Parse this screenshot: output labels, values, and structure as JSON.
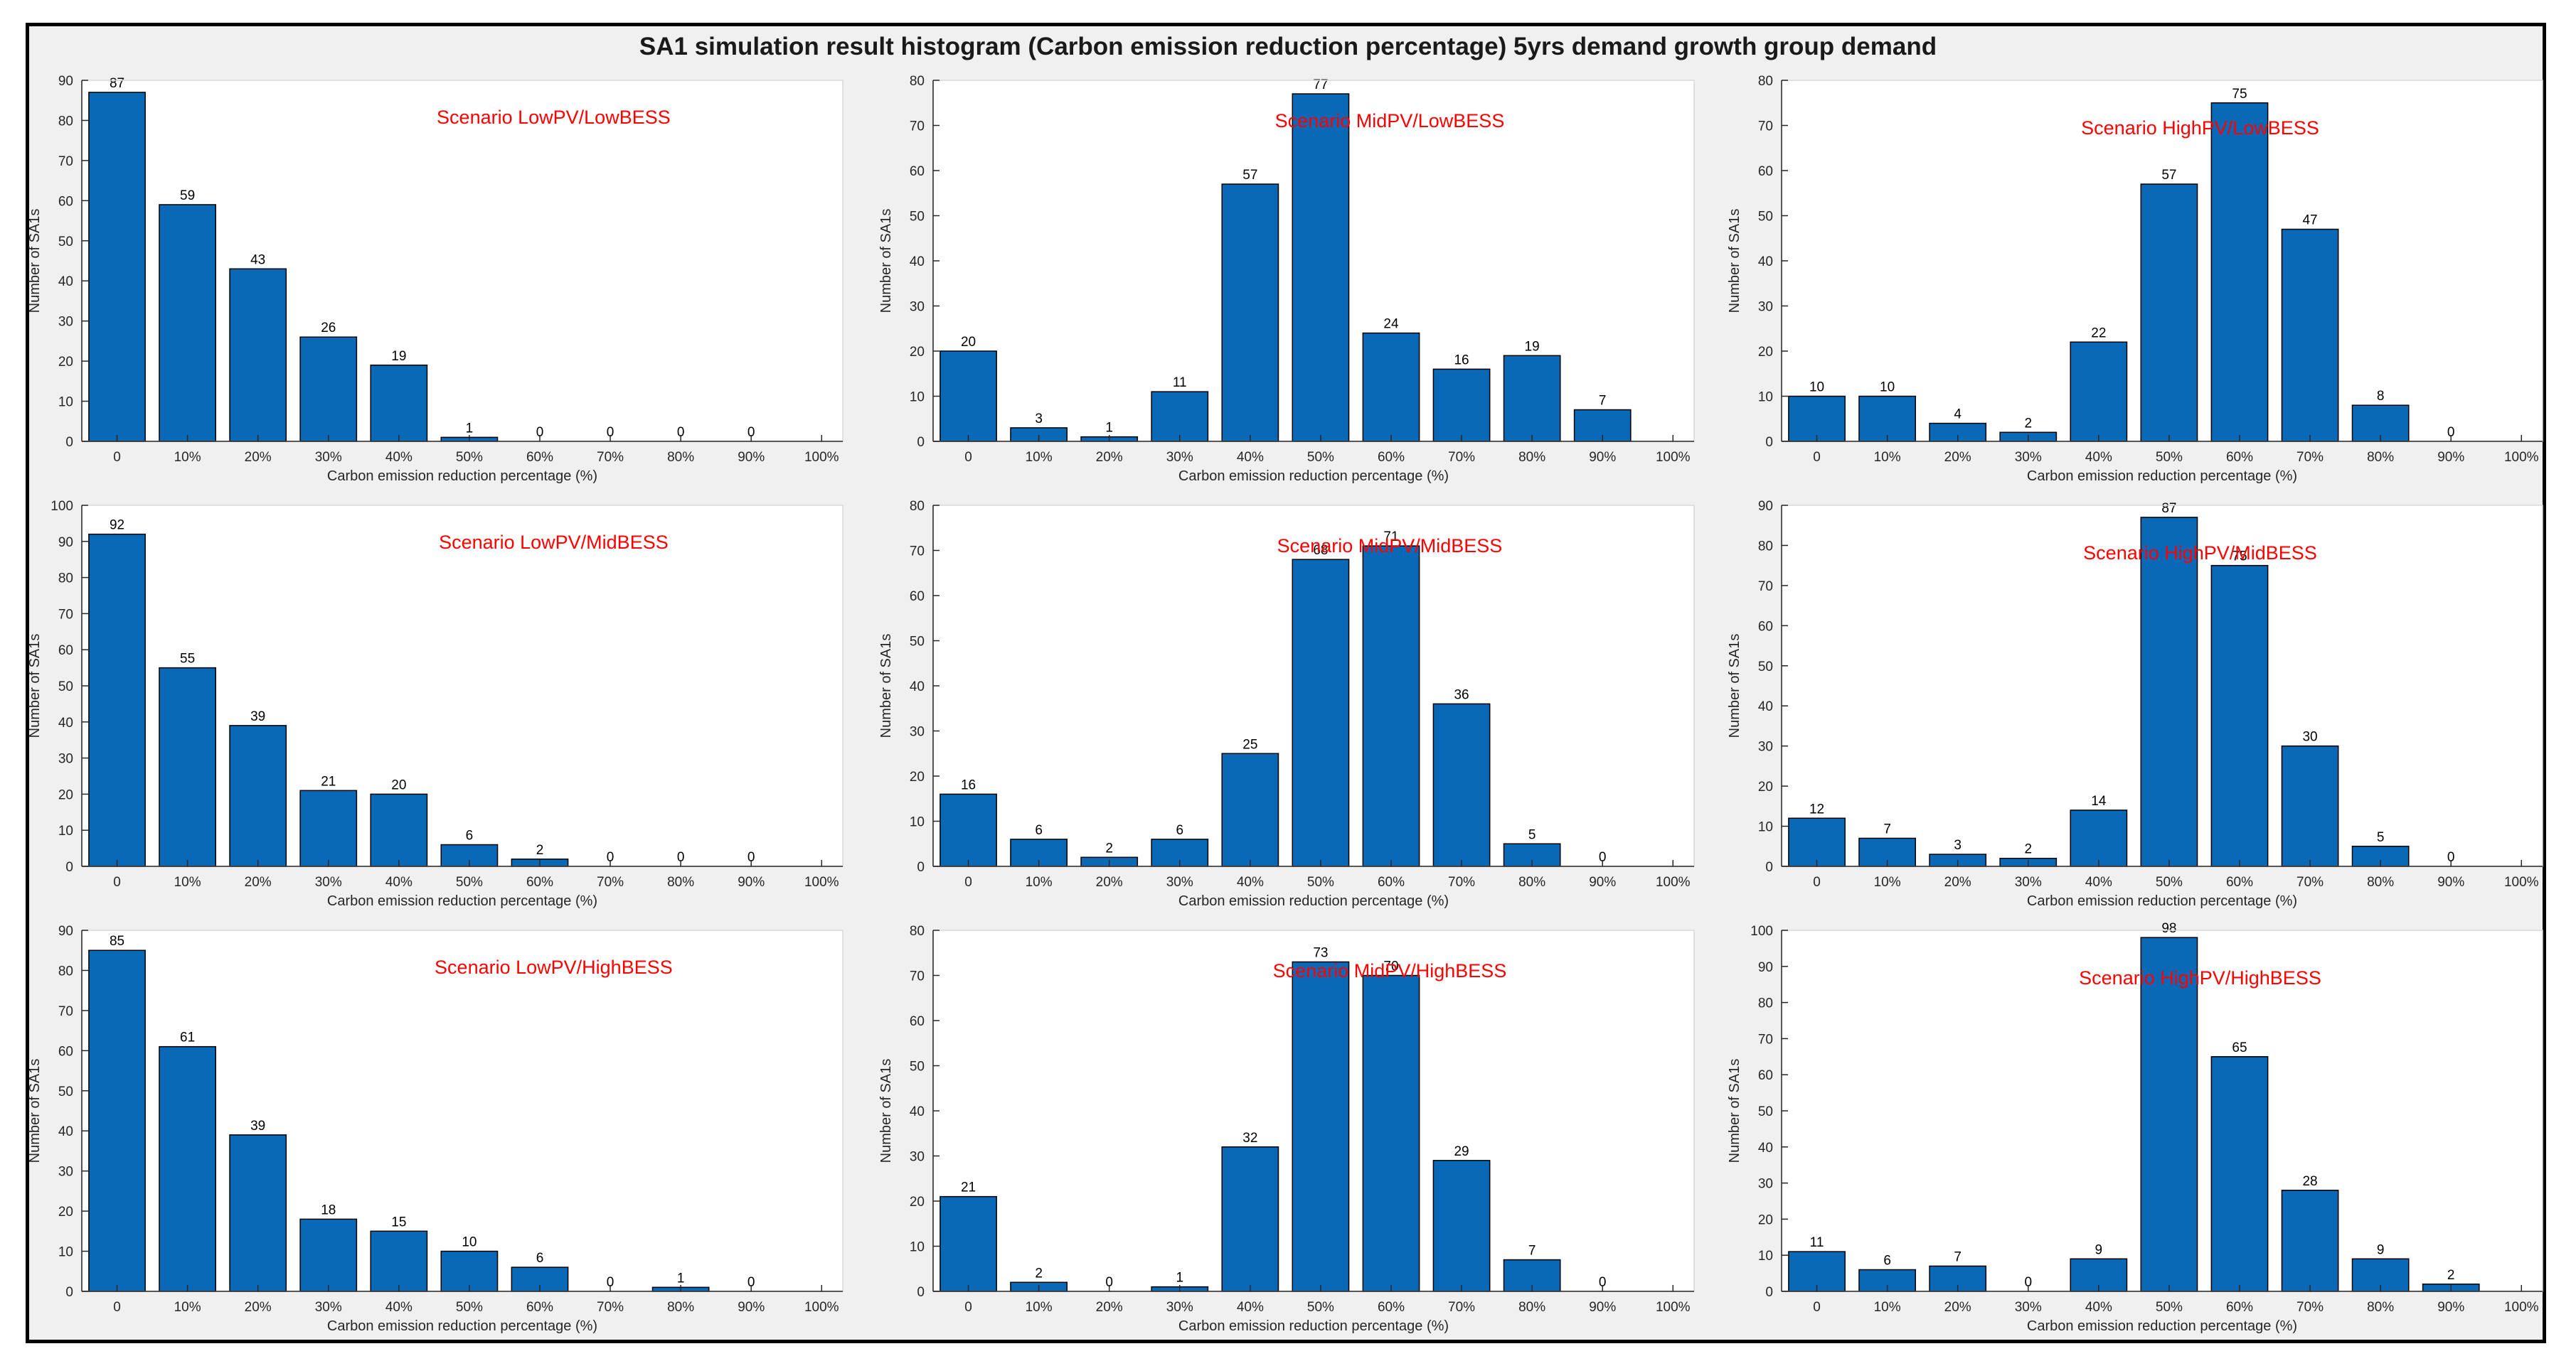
{
  "figure_title": "SA1 simulation result histogram (Carbon emission reduction percentage) 5yrs demand growth group demand",
  "colors": {
    "bar": "#0a69b7",
    "scenario_text": "#ff0000",
    "background": "#f0f0f0",
    "plot_bg": "#ffffff"
  },
  "chart_data": [
    {
      "type": "bar",
      "title": "Scenario LowPV/LowBESS",
      "categories": [
        "0",
        "10%",
        "20%",
        "30%",
        "40%",
        "50%",
        "60%",
        "70%",
        "80%",
        "90%",
        "100%"
      ],
      "values": [
        87,
        59,
        43,
        26,
        19,
        1,
        0,
        0,
        0,
        0,
        null
      ],
      "ylim": [
        0,
        90
      ],
      "yticks": [
        0,
        10,
        20,
        30,
        40,
        50,
        60,
        70,
        80,
        90
      ],
      "xlabel": "Carbon emission reduction percentage (%)",
      "ylabel": "Number of SA1s"
    },
    {
      "type": "bar",
      "title": "Scenario MidPV/LowBESS",
      "categories": [
        "0",
        "10%",
        "20%",
        "30%",
        "40%",
        "50%",
        "60%",
        "70%",
        "80%",
        "90%",
        "100%"
      ],
      "values": [
        20,
        3,
        1,
        11,
        57,
        77,
        24,
        16,
        19,
        7,
        null
      ],
      "ylim": [
        0,
        80
      ],
      "yticks": [
        0,
        10,
        20,
        30,
        40,
        50,
        60,
        70,
        80
      ],
      "xlabel": "Carbon emission reduction percentage (%)",
      "ylabel": "Number of SA1s"
    },
    {
      "type": "bar",
      "title": "Scenario HighPV/LowBESS",
      "categories": [
        "0",
        "10%",
        "20%",
        "30%",
        "40%",
        "50%",
        "60%",
        "70%",
        "80%",
        "90%",
        "100%"
      ],
      "values": [
        10,
        10,
        4,
        2,
        22,
        57,
        75,
        47,
        8,
        0,
        null
      ],
      "ylim": [
        0,
        80
      ],
      "yticks": [
        0,
        10,
        20,
        30,
        40,
        50,
        60,
        70,
        80
      ],
      "xlabel": "Carbon emission reduction percentage (%)",
      "ylabel": "Number of SA1s"
    },
    {
      "type": "bar",
      "title": "Scenario LowPV/MidBESS",
      "categories": [
        "0",
        "10%",
        "20%",
        "30%",
        "40%",
        "50%",
        "60%",
        "70%",
        "80%",
        "90%",
        "100%"
      ],
      "values": [
        92,
        55,
        39,
        21,
        20,
        6,
        2,
        0,
        0,
        0,
        null
      ],
      "ylim": [
        0,
        100
      ],
      "yticks": [
        0,
        10,
        20,
        30,
        40,
        50,
        60,
        70,
        80,
        90,
        100
      ],
      "xlabel": "Carbon emission reduction percentage (%)",
      "ylabel": "Number of SA1s"
    },
    {
      "type": "bar",
      "title": "Scenario MidPV/MidBESS",
      "categories": [
        "0",
        "10%",
        "20%",
        "30%",
        "40%",
        "50%",
        "60%",
        "70%",
        "80%",
        "90%",
        "100%"
      ],
      "values": [
        16,
        6,
        2,
        6,
        25,
        68,
        71,
        36,
        5,
        0,
        null
      ],
      "ylim": [
        0,
        80
      ],
      "yticks": [
        0,
        10,
        20,
        30,
        40,
        50,
        60,
        70,
        80
      ],
      "xlabel": "Carbon emission reduction percentage (%)",
      "ylabel": "Number of SA1s"
    },
    {
      "type": "bar",
      "title": "Scenario HighPV/MidBESS",
      "categories": [
        "0",
        "10%",
        "20%",
        "30%",
        "40%",
        "50%",
        "60%",
        "70%",
        "80%",
        "90%",
        "100%"
      ],
      "values": [
        12,
        7,
        3,
        2,
        14,
        87,
        75,
        30,
        5,
        0,
        null
      ],
      "ylim": [
        0,
        90
      ],
      "yticks": [
        0,
        10,
        20,
        30,
        40,
        50,
        60,
        70,
        80,
        90
      ],
      "xlabel": "Carbon emission reduction percentage (%)",
      "ylabel": "Number of SA1s"
    },
    {
      "type": "bar",
      "title": "Scenario LowPV/HighBESS",
      "categories": [
        "0",
        "10%",
        "20%",
        "30%",
        "40%",
        "50%",
        "60%",
        "70%",
        "80%",
        "90%",
        "100%"
      ],
      "values": [
        85,
        61,
        39,
        18,
        15,
        10,
        6,
        0,
        1,
        0,
        null
      ],
      "ylim": [
        0,
        90
      ],
      "yticks": [
        0,
        10,
        20,
        30,
        40,
        50,
        60,
        70,
        80,
        90
      ],
      "xlabel": "Carbon emission reduction percentage (%)",
      "ylabel": "Number of SA1s"
    },
    {
      "type": "bar",
      "title": "Scenario MidPV/HighBESS",
      "categories": [
        "0",
        "10%",
        "20%",
        "30%",
        "40%",
        "50%",
        "60%",
        "70%",
        "80%",
        "90%",
        "100%"
      ],
      "values": [
        21,
        2,
        0,
        1,
        32,
        73,
        70,
        29,
        7,
        0,
        null
      ],
      "ylim": [
        0,
        80
      ],
      "yticks": [
        0,
        10,
        20,
        30,
        40,
        50,
        60,
        70,
        80
      ],
      "xlabel": "Carbon emission reduction percentage (%)",
      "ylabel": "Number of SA1s"
    },
    {
      "type": "bar",
      "title": "Scenario HighPV/HighBESS",
      "categories": [
        "0",
        "10%",
        "20%",
        "30%",
        "40%",
        "50%",
        "60%",
        "70%",
        "80%",
        "90%",
        "100%"
      ],
      "values": [
        11,
        6,
        7,
        0,
        9,
        98,
        65,
        28,
        9,
        2,
        null
      ],
      "ylim": [
        0,
        100
      ],
      "yticks": [
        0,
        10,
        20,
        30,
        40,
        50,
        60,
        70,
        80,
        90,
        100
      ],
      "xlabel": "Carbon emission reduction percentage (%)",
      "ylabel": "Number of SA1s"
    }
  ]
}
